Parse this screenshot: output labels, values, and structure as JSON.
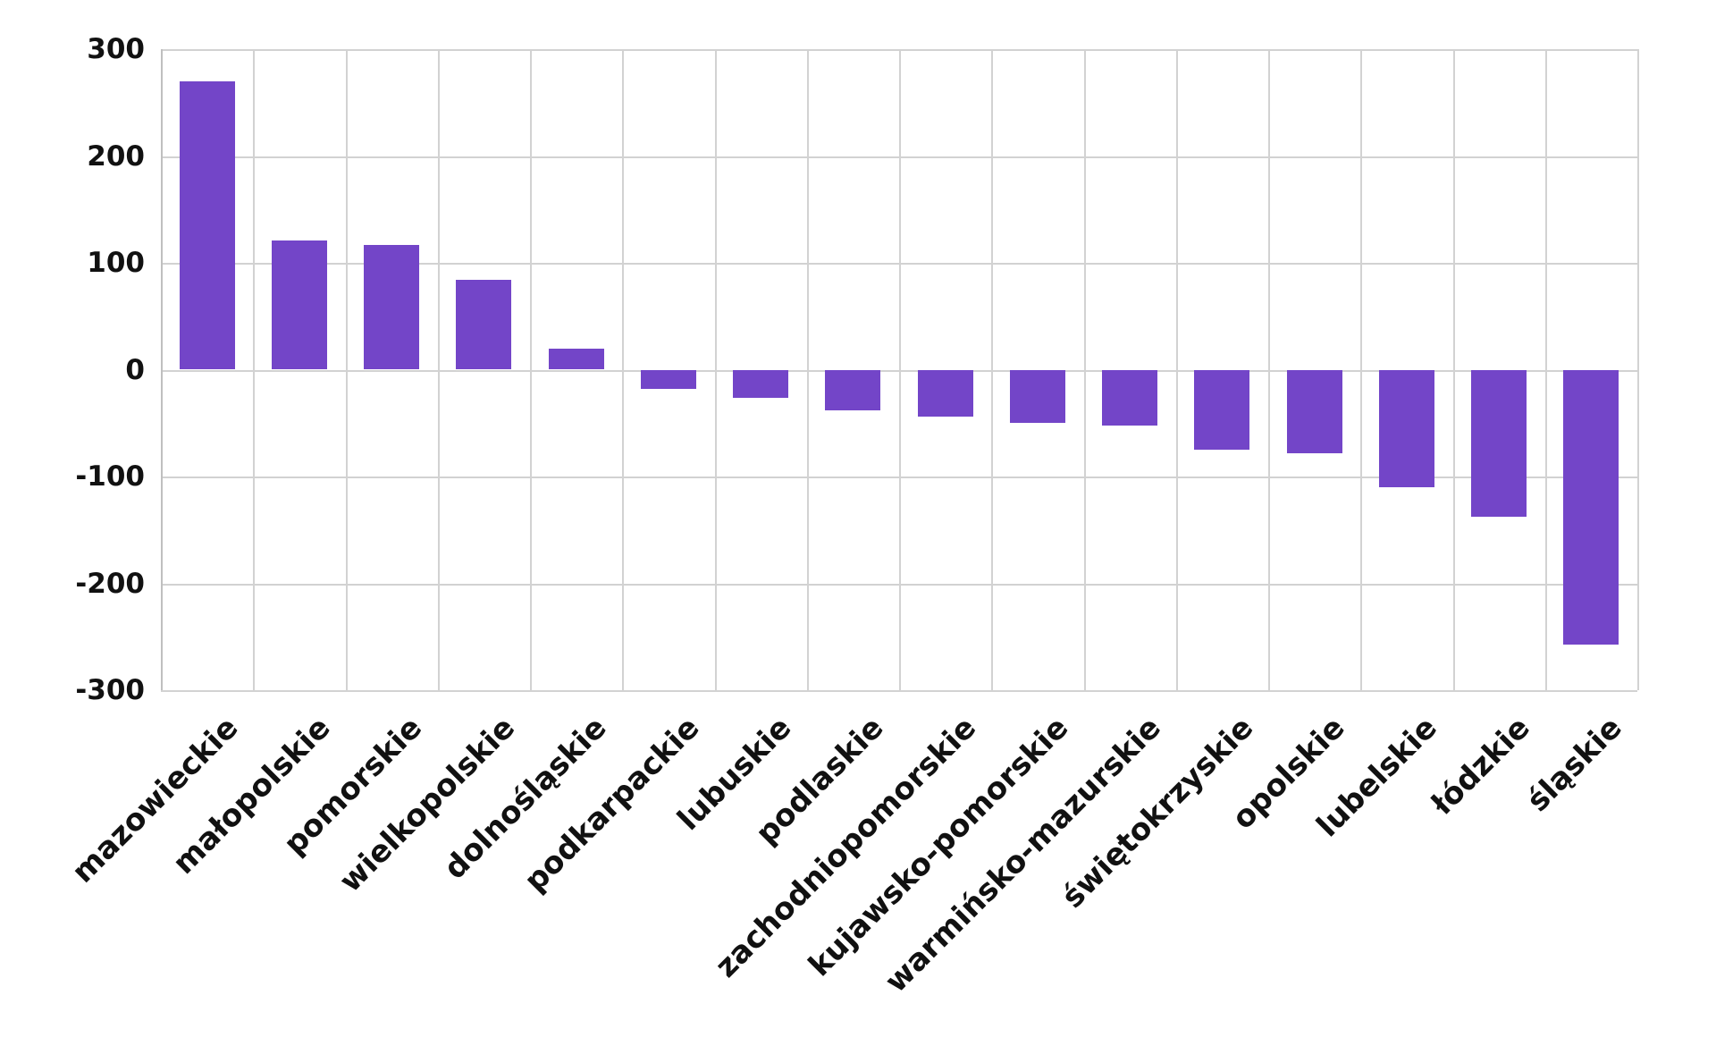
{
  "chart_data": {
    "type": "bar",
    "title": "",
    "xlabel": "",
    "ylabel": "",
    "categories": [
      "mazowieckie",
      "małopolskie",
      "pomorskie",
      "wielkopolskie",
      "dolnośląskie",
      "podkarpackie",
      "lubuskie",
      "podlaskie",
      "zachodniopomorskie",
      "kujawsko-pomorskie",
      "warmińsko-mazurskie",
      "świętokrzyskie",
      "opolskie",
      "lubelskie",
      "łódzkie",
      "śląskie"
    ],
    "values": [
      270,
      121,
      117,
      84,
      20,
      -18,
      -26,
      -38,
      -44,
      -50,
      -52,
      -75,
      -78,
      -110,
      -138,
      -257
    ],
    "ylim": [
      -300,
      300
    ],
    "yticks": [
      300,
      200,
      100,
      0,
      -100,
      -200,
      -300
    ],
    "grid": true,
    "legend": "none",
    "bar_color": "#7345C8",
    "grid_color": "#d2d2d2",
    "background_color": "#ffffff",
    "text_color": "#111111"
  }
}
